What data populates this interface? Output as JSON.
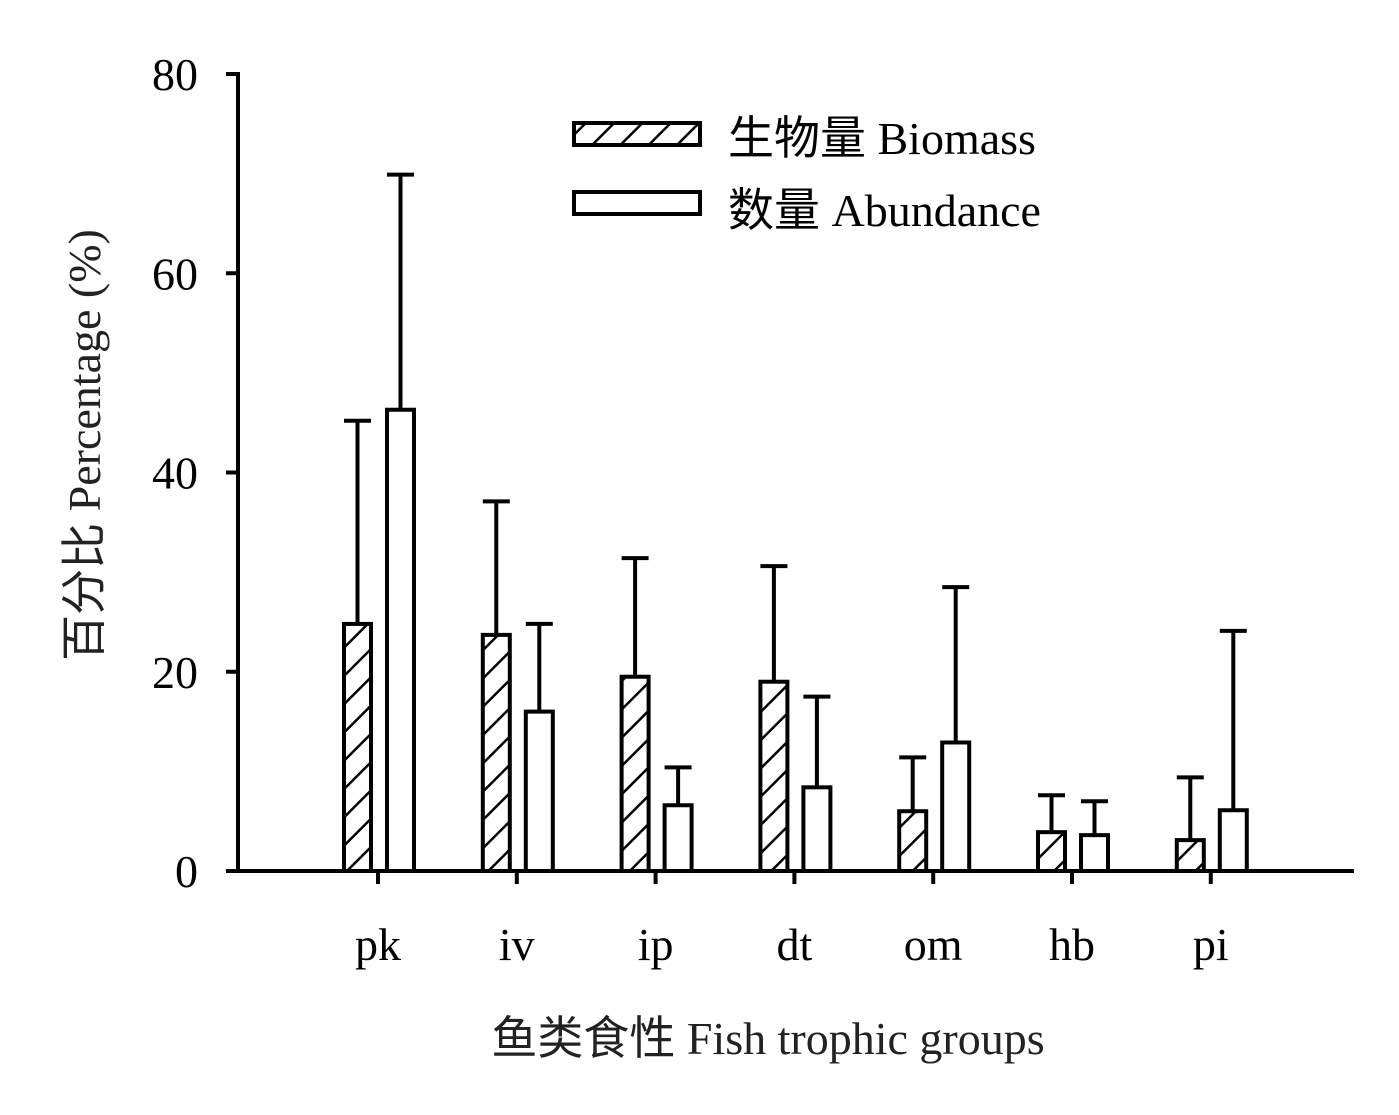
{
  "chart_data": {
    "type": "bar",
    "title": "",
    "xlabel": "鱼类食性  Fish trophic groups",
    "ylabel": "百分比  Percentage  (%)",
    "ylim": [
      0,
      80
    ],
    "yticks": [
      "0",
      "20",
      "40",
      "60",
      "80"
    ],
    "categories": [
      "pk",
      "iv",
      "ip",
      "dt",
      "om",
      "hb",
      "pi"
    ],
    "legend_position": "top-right",
    "grid": false,
    "series": [
      {
        "name": "生物量 Biomass",
        "pattern": "hatched",
        "values": [
          24.8,
          23.7,
          19.5,
          19.0,
          6.0,
          3.9,
          3.1
        ],
        "error_upper": [
          45.2,
          37.1,
          31.4,
          30.6,
          11.4,
          7.6,
          9.4
        ]
      },
      {
        "name": "数量 Abundance",
        "pattern": "open",
        "values": [
          46.3,
          16.0,
          6.6,
          8.4,
          12.9,
          3.6,
          6.1
        ],
        "error_upper": [
          69.9,
          24.8,
          10.4,
          17.5,
          28.5,
          7.0,
          24.1
        ]
      }
    ]
  }
}
